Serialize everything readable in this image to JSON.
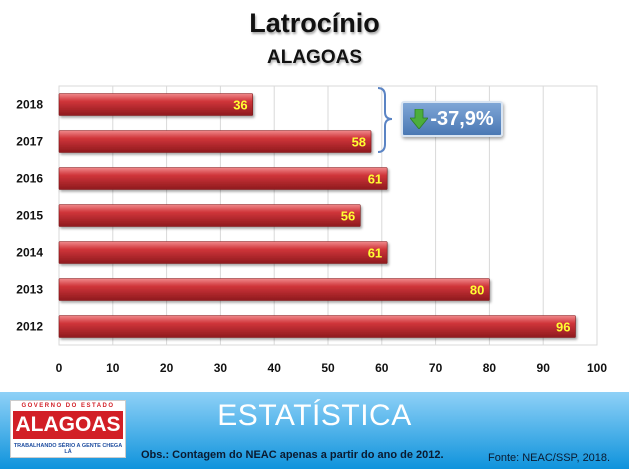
{
  "chart_data": {
    "type": "bar",
    "orientation": "horizontal",
    "title": "Latrocínio",
    "subtitle": "ALAGOAS",
    "categories": [
      "2018",
      "2017",
      "2016",
      "2015",
      "2014",
      "2013",
      "2012"
    ],
    "values": [
      36,
      58,
      61,
      56,
      61,
      80,
      96
    ],
    "data_labels": [
      "36",
      "58",
      "61",
      "56",
      "61",
      "80",
      "96"
    ],
    "xlim": [
      0,
      100
    ],
    "xticks": [
      "0",
      "10",
      "20",
      "30",
      "40",
      "50",
      "60",
      "70",
      "80",
      "90",
      "100"
    ],
    "grid": "vertical",
    "legend": "none",
    "bar_color": "#c0272d",
    "label_color": "#ffff33",
    "annotation": {
      "text": "-37,9%",
      "icon": "down-arrow-icon",
      "icon_color": "#4cae3c",
      "spans": [
        "2018",
        "2017"
      ]
    }
  },
  "footer": {
    "title": "ESTATÍSTICA",
    "note": "Obs.: Contagem do NEAC apenas a partir do ano de 2012.",
    "source": "Fonte: NEAC/SSP, 2018.",
    "bar_color": "#0f93dc"
  },
  "logo": {
    "top_text": "GOVERNO DO ESTADO",
    "main_text": "ALAGOAS",
    "bottom_text": "TRABALHANDO SÉRIO A GENTE CHEGA LÁ",
    "color": "#d21f26"
  }
}
